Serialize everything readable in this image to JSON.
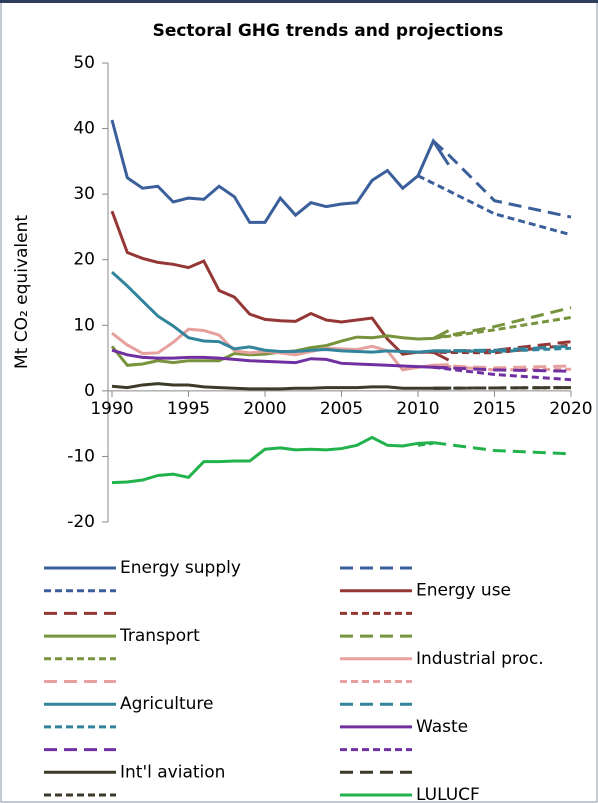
{
  "chart_data": {
    "type": "line",
    "title": "Sectoral GHG trends and projections",
    "y_label": "Mt CO₂ equivalent",
    "x": [
      1990,
      1991,
      1992,
      1993,
      1994,
      1995,
      1996,
      1997,
      1998,
      1999,
      2000,
      2001,
      2002,
      2003,
      2004,
      2005,
      2006,
      2007,
      2008,
      2009,
      2010,
      2011,
      2012
    ],
    "xlim": [
      1990,
      2020
    ],
    "xticks": [
      1990,
      1995,
      2000,
      2005,
      2010,
      2015,
      2020
    ],
    "ylim": [
      -20,
      50
    ],
    "yticks": [
      -20,
      -10,
      0,
      10,
      20,
      30,
      40,
      50
    ],
    "grid": false,
    "legend": "bottom",
    "series": [
      {
        "name": "Energy supply",
        "color": "#3a5f9a",
        "dash": "solid",
        "values": [
          41.3,
          32.5,
          30.9,
          31.2,
          28.8,
          29.4,
          29.2,
          31.2,
          29.6,
          25.7,
          25.7,
          29.4,
          26.8,
          28.7,
          28.1,
          28.5,
          28.7,
          32.1,
          33.6,
          30.9,
          32.8,
          38.1,
          34.5
        ]
      },
      {
        "color": "#3a5f9a",
        "dash": "long",
        "x": [
          2011,
          2012,
          2015,
          2020
        ],
        "values": [
          38.1,
          36,
          29,
          26.5
        ]
      },
      {
        "color": "#3a5f9a",
        "dash": "short",
        "x": [
          2010,
          2012,
          2015,
          2020
        ],
        "values": [
          32.8,
          30.5,
          27,
          23.8
        ]
      },
      {
        "name": "Energy use",
        "color": "#953735",
        "dash": "solid",
        "values": [
          27.4,
          21.1,
          20.2,
          19.6,
          19.3,
          18.8,
          19.8,
          15.3,
          14.3,
          11.7,
          10.9,
          10.7,
          10.6,
          11.8,
          10.8,
          10.5,
          10.8,
          11.1,
          7.9,
          5.6,
          5.9,
          5.9,
          4.7
        ]
      },
      {
        "color": "#953735",
        "dash": "long",
        "x": [
          2010,
          2015,
          2020
        ],
        "values": [
          5.9,
          6.2,
          7.5
        ]
      },
      {
        "color": "#953735",
        "dash": "short",
        "x": [
          2010,
          2015,
          2020
        ],
        "values": [
          5.9,
          5.8,
          7.0
        ]
      },
      {
        "name": "Transport",
        "color": "#77933c",
        "dash": "solid",
        "values": [
          6.8,
          3.9,
          4.1,
          4.6,
          4.3,
          4.6,
          4.6,
          4.6,
          5.7,
          5.5,
          5.6,
          5.9,
          6.1,
          6.6,
          6.9,
          7.6,
          8.2,
          8.1,
          8.4,
          8.1,
          7.9,
          8.0,
          9.2
        ]
      },
      {
        "color": "#77933c",
        "dash": "long",
        "x": [
          2011,
          2015,
          2020
        ],
        "values": [
          8.0,
          9.8,
          12.7
        ]
      },
      {
        "color": "#77933c",
        "dash": "short",
        "x": [
          2011,
          2015,
          2020
        ],
        "values": [
          8.0,
          9.3,
          11.2
        ]
      },
      {
        "name": "Industrial proc.",
        "color": "#e6a09e",
        "dash": "solid",
        "values": [
          8.8,
          7.0,
          5.7,
          5.8,
          7.4,
          9.4,
          9.2,
          8.5,
          6.1,
          5.8,
          6.0,
          5.8,
          5.5,
          6.0,
          6.5,
          6.4,
          6.3,
          6.8,
          6.1,
          3.2,
          3.6,
          3.9,
          4.0
        ]
      },
      {
        "color": "#e6a09e",
        "dash": "long",
        "x": [
          2011,
          2015,
          2020
        ],
        "values": [
          3.9,
          3.5,
          3.8
        ]
      },
      {
        "color": "#e6a09e",
        "dash": "short",
        "x": [
          2011,
          2015,
          2020
        ],
        "values": [
          3.9,
          3.2,
          3.3
        ]
      },
      {
        "name": "Agriculture",
        "color": "#31849b",
        "dash": "solid",
        "values": [
          18.1,
          16.0,
          13.7,
          11.4,
          9.9,
          8.1,
          7.6,
          7.5,
          6.4,
          6.7,
          6.2,
          6.0,
          6.0,
          6.2,
          6.3,
          6.1,
          6.0,
          5.9,
          6.1,
          6.0,
          5.9,
          6.1,
          6.0
        ]
      },
      {
        "color": "#31849b",
        "dash": "long",
        "x": [
          2011,
          2015,
          2020
        ],
        "values": [
          6.1,
          6.2,
          6.8
        ]
      },
      {
        "color": "#31849b",
        "dash": "short",
        "x": [
          2011,
          2015,
          2020
        ],
        "values": [
          6.1,
          6.0,
          6.5
        ]
      },
      {
        "name": "Waste",
        "color": "#7030a0",
        "dash": "solid",
        "values": [
          6.2,
          5.5,
          5.1,
          5.0,
          5.0,
          5.1,
          5.1,
          5.0,
          4.8,
          4.6,
          4.5,
          4.4,
          4.3,
          4.9,
          4.8,
          4.2,
          4.1,
          4.0,
          3.9,
          3.8,
          3.7,
          3.6,
          3.5
        ]
      },
      {
        "color": "#7030a0",
        "dash": "long",
        "x": [
          2011,
          2015,
          2020
        ],
        "values": [
          3.6,
          3.2,
          3.0
        ]
      },
      {
        "color": "#7030a0",
        "dash": "short",
        "x": [
          2011,
          2015,
          2020
        ],
        "values": [
          3.6,
          2.5,
          1.7
        ]
      },
      {
        "name": "Int'l aviation",
        "color": "#3d3a2a",
        "dash": "solid",
        "values": [
          0.7,
          0.5,
          0.9,
          1.1,
          0.9,
          0.9,
          0.6,
          0.5,
          0.4,
          0.3,
          0.3,
          0.3,
          0.4,
          0.4,
          0.5,
          0.5,
          0.5,
          0.6,
          0.6,
          0.4,
          0.4,
          0.4,
          0.4
        ]
      },
      {
        "color": "#3d3a2a",
        "dash": "long",
        "x": [
          2011,
          2020
        ],
        "values": [
          0.4,
          0.5
        ]
      },
      {
        "color": "#3d3a2a",
        "dash": "short",
        "x": [
          2011,
          2020
        ],
        "values": [
          0.4,
          0.5
        ]
      },
      {
        "name": "LULUCF",
        "color": "#22b24c",
        "dash": "solid",
        "values": [
          -14.0,
          -13.9,
          -13.6,
          -12.9,
          -12.7,
          -13.2,
          -10.8,
          -10.8,
          -10.7,
          -10.7,
          -8.9,
          -8.7,
          -9.0,
          -8.9,
          -9.0,
          -8.8,
          -8.3,
          -7.1,
          -8.3,
          -8.4,
          -8.0,
          -7.9,
          null
        ]
      },
      {
        "color": "#22b24c",
        "dash": "long",
        "x": [
          2011,
          2015,
          2020
        ],
        "values": [
          -7.9,
          -9.1,
          -9.6
        ]
      },
      {
        "color": "#22b24c",
        "dash": "short",
        "x": [
          2010,
          2011
        ],
        "values": [
          -8.3,
          -8.0
        ]
      }
    ]
  }
}
